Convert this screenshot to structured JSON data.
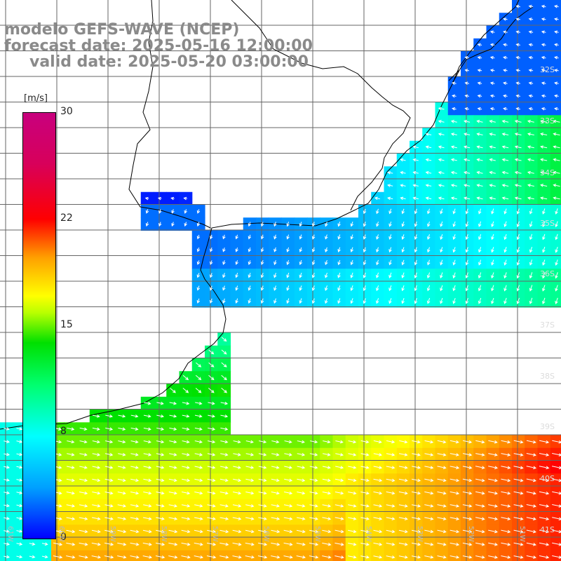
{
  "title": {
    "model": "modelo GEFS-WAVE (NCEP)",
    "forecast": "forecast date: 2025-05-16 12:00:00",
    "valid": "valid date: 2025-05-20 03:00:00"
  },
  "colorbar": {
    "unit": "[m/s]",
    "ticks": [
      "30",
      "22",
      "15",
      "8",
      "0"
    ],
    "tick_values": [
      30,
      22,
      15,
      8,
      0
    ],
    "colors": [
      "#0000ff",
      "#00a0ff",
      "#00ffff",
      "#00ff70",
      "#00e000",
      "#ffff00",
      "#ffa000",
      "#ff0000",
      "#c8007e"
    ]
  },
  "lat_labels": [
    "32S",
    "33S",
    "34S",
    "35S",
    "36S",
    "37S",
    "38S",
    "39S",
    "40S",
    "41S"
  ],
  "lon_labels": [
    "61W",
    "60W",
    "59W",
    "58W",
    "57W",
    "56W",
    "55W",
    "54W",
    "53W",
    "52W",
    "51W"
  ],
  "colors": {
    "land": "#ffffff",
    "coast": "#000000",
    "grid": "#666666",
    "arrow": "#ffffff",
    "title": "#8a8a8a"
  }
}
